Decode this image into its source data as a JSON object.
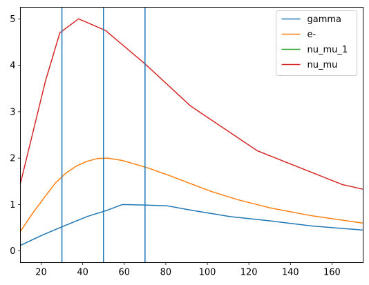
{
  "chart_data": {
    "type": "line",
    "title": "",
    "xlabel": "",
    "ylabel": "",
    "xlim": [
      10,
      175
    ],
    "ylim": [
      -0.25,
      5.25
    ],
    "xticks": [
      20,
      40,
      60,
      80,
      100,
      120,
      140,
      160
    ],
    "yticks": [
      0,
      1,
      2,
      3,
      4,
      5
    ],
    "grid": false,
    "legend_position": "top-right",
    "vertical_lines": {
      "color": "#1f77b4",
      "x": [
        30,
        50,
        70
      ]
    },
    "series": [
      {
        "name": "gamma",
        "color": "#1f77b4",
        "x": [
          10,
          20,
          30,
          42,
          52,
          59,
          70,
          81,
          92,
          111,
          130,
          150,
          175
        ],
        "y": [
          0.12,
          0.33,
          0.52,
          0.74,
          0.88,
          1.0,
          0.99,
          0.97,
          0.88,
          0.74,
          0.65,
          0.54,
          0.45
        ]
      },
      {
        "name": "e-",
        "color": "#ff7f0e",
        "x": [
          10,
          16,
          22,
          27,
          32,
          37,
          42,
          47,
          52,
          59,
          66,
          72,
          82,
          92,
          102,
          115,
          130,
          150,
          175
        ],
        "y": [
          0.42,
          0.82,
          1.18,
          1.47,
          1.68,
          1.83,
          1.93,
          1.99,
          2.0,
          1.95,
          1.86,
          1.78,
          1.62,
          1.45,
          1.28,
          1.1,
          0.93,
          0.76,
          0.6
        ]
      },
      {
        "name": "nu_mu_1",
        "color": "#2ca02c",
        "x": [],
        "y": []
      },
      {
        "name": "nu_mu",
        "color": "#d62728",
        "x": [
          10,
          22,
          29,
          38,
          51,
          70,
          92,
          124,
          165,
          175
        ],
        "y": [
          1.45,
          3.65,
          4.7,
          5.0,
          4.75,
          4.03,
          3.12,
          2.16,
          1.43,
          1.33
        ]
      }
    ]
  }
}
